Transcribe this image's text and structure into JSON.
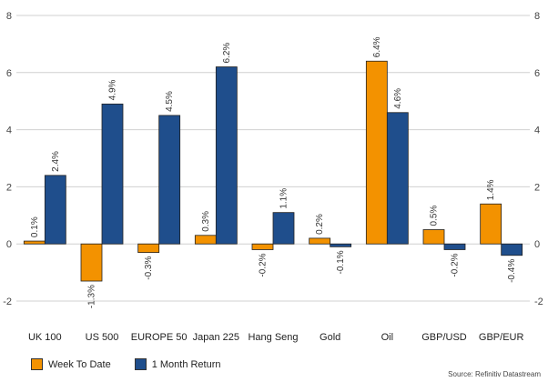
{
  "chart_data": {
    "type": "bar",
    "categories": [
      "UK 100",
      "US 500",
      "EUROPE 50",
      "Japan 225",
      "Hang Seng",
      "Gold",
      "Oil",
      "GBP/USD",
      "GBP/EUR"
    ],
    "series": [
      {
        "name": "Week To Date",
        "color": "#F39200",
        "values": [
          0.1,
          -1.3,
          -0.3,
          0.3,
          -0.2,
          0.2,
          6.4,
          0.5,
          1.4
        ],
        "labels": [
          "0.1%",
          "-1.3%",
          "-0.3%",
          "0.3%",
          "-0.2%",
          "0.2%",
          "6.4%",
          "0.5%",
          "1.4%"
        ]
      },
      {
        "name": "1 Month Return",
        "color": "#1F4E8C",
        "values": [
          2.4,
          4.9,
          4.5,
          6.2,
          1.1,
          -0.1,
          4.6,
          -0.2,
          -0.4
        ],
        "labels": [
          "2.4%",
          "4.9%",
          "4.5%",
          "6.2%",
          "1.1%",
          "-0.1%",
          "4.6%",
          "-0.2%",
          "-0.4%"
        ]
      }
    ],
    "ylim": [
      -2,
      8
    ],
    "yticks": [
      -2,
      0,
      2,
      4,
      6,
      8
    ],
    "grid": true,
    "legend_position": "bottom-left",
    "source": "Source: Refinitiv Datastream"
  }
}
